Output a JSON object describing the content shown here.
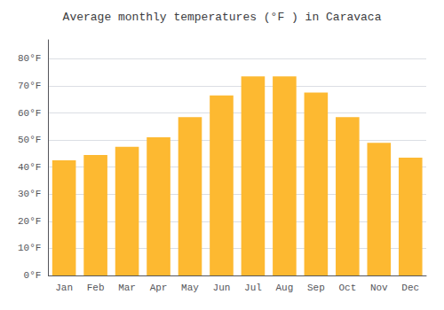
{
  "chart_data": {
    "type": "bar",
    "title": "Average monthly temperatures (°F ) in Caravaca",
    "categories": [
      "Jan",
      "Feb",
      "Mar",
      "Apr",
      "May",
      "Jun",
      "Jul",
      "Aug",
      "Sep",
      "Oct",
      "Nov",
      "Dec"
    ],
    "values": [
      42.5,
      44.5,
      47.5,
      51.0,
      58.5,
      66.5,
      73.5,
      73.5,
      67.5,
      58.5,
      49.0,
      43.5
    ],
    "color": "#FDB931",
    "ylim": [
      0,
      87
    ],
    "yticks": [
      {
        "value": 0,
        "label": "0°F"
      },
      {
        "value": 10,
        "label": "10°F"
      },
      {
        "value": 20,
        "label": "20°F"
      },
      {
        "value": 30,
        "label": "30°F"
      },
      {
        "value": 40,
        "label": "40°F"
      },
      {
        "value": 50,
        "label": "50°F"
      },
      {
        "value": 60,
        "label": "60°F"
      },
      {
        "value": 70,
        "label": "70°F"
      },
      {
        "value": 80,
        "label": "80°F"
      }
    ],
    "grid": true
  }
}
